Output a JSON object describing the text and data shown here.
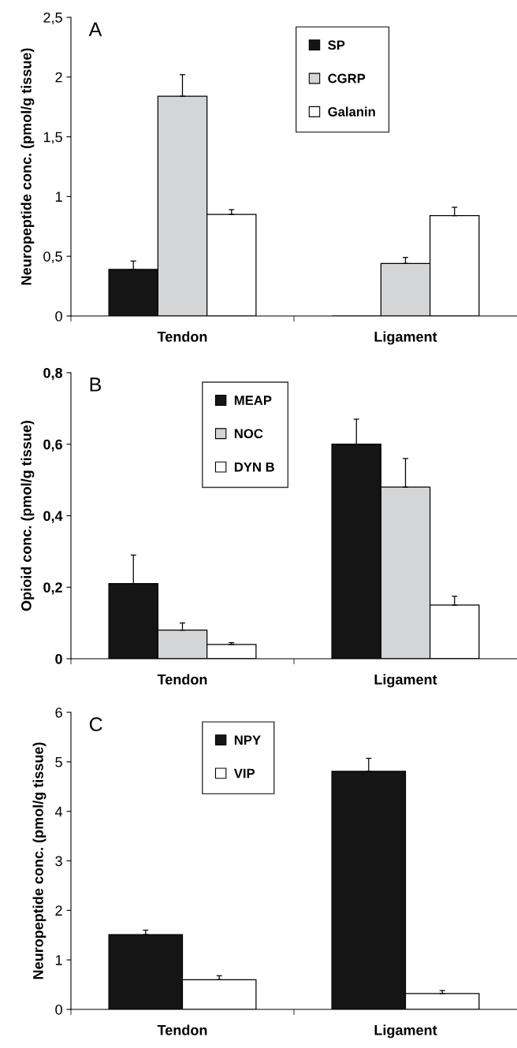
{
  "chart_data": [
    {
      "type": "bar",
      "ylabel": "Neuropeptide conc. (pmol/g tissue)",
      "categories": [
        "Tendon",
        "Ligament"
      ],
      "annotations": [
        "A"
      ],
      "legend": "top right",
      "ylim": [
        0,
        2.5
      ],
      "yticks": [
        0,
        {
          "value": 0.5,
          "label": "0,5"
        },
        1,
        {
          "value": 1.5,
          "label": "1,5"
        },
        2,
        {
          "value": 2.5,
          "label": "2,5"
        }
      ],
      "grid": false,
      "series": [
        {
          "name": "SP",
          "color": "#151515",
          "values": [
            0.39,
            0
          ],
          "errors": [
            [
              0.39,
              0.46
            ],
            null
          ]
        },
        {
          "name": "CGRP",
          "color": "#d4d5d7",
          "values": [
            1.84,
            0.44
          ],
          "errors": [
            [
              1.84,
              2.02
            ],
            [
              0.44,
              0.49
            ]
          ]
        },
        {
          "name": "Galanin",
          "color": "#ffffff",
          "values": [
            0.85,
            0.84
          ],
          "errors": [
            [
              0.85,
              0.89
            ],
            [
              0.84,
              0.91
            ]
          ]
        }
      ]
    },
    {
      "type": "bar",
      "ylabel": "Opioid conc. (pmol/g tissue)",
      "categories": [
        "Tendon",
        "Ligament"
      ],
      "annotations": [
        "B"
      ],
      "legend": "top",
      "ylim": [
        0,
        0.8
      ],
      "yticks": [
        0,
        {
          "value": 0.2,
          "label": "0,2"
        },
        {
          "value": 0.4,
          "label": "0,4"
        },
        {
          "value": 0.6,
          "label": "0,6"
        },
        {
          "value": 0.8,
          "label": "0,8"
        }
      ],
      "grid": false,
      "series": [
        {
          "name": "MEAP",
          "color": "#151515",
          "values": [
            0.21,
            0.6
          ],
          "errors": [
            [
              0.21,
              0.29
            ],
            [
              0.6,
              0.67
            ]
          ]
        },
        {
          "name": "NOC",
          "color": "#d4d5d7",
          "values": [
            0.08,
            0.48
          ],
          "errors": [
            [
              0.08,
              0.1
            ],
            [
              0.48,
              0.56
            ]
          ]
        },
        {
          "name": "DYN B",
          "color": "#ffffff",
          "values": [
            0.04,
            0.15
          ],
          "errors": [
            [
              0.04,
              0.045
            ],
            [
              0.15,
              0.175
            ]
          ]
        }
      ]
    },
    {
      "type": "bar",
      "ylabel": "Neuropeptide conc. (pmol/g tissue)",
      "categories": [
        "Tendon",
        "Ligament"
      ],
      "annotations": [
        "C"
      ],
      "legend": "top",
      "ylim": [
        0,
        6
      ],
      "yticks": [
        0,
        1,
        2,
        3,
        4,
        5,
        6
      ],
      "grid": false,
      "series": [
        {
          "name": "NPY",
          "color": "#151515",
          "values": [
            1.51,
            4.81
          ],
          "errors": [
            [
              1.51,
              1.6
            ],
            [
              4.81,
              5.07
            ]
          ]
        },
        {
          "name": "VIP",
          "color": "#ffffff",
          "values": [
            0.6,
            0.32
          ],
          "errors": [
            [
              0.6,
              0.68
            ],
            [
              0.32,
              0.38
            ]
          ]
        }
      ]
    }
  ]
}
